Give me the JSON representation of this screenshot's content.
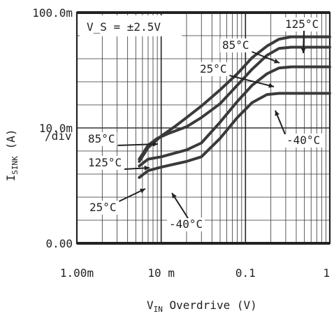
{
  "chart_data": {
    "type": "line",
    "title": "",
    "annotation": "V_S = ±2.5V",
    "x_axis": {
      "label_main": "V",
      "label_sub": "IN",
      "label_rest": " Overdrive (V)",
      "scale": "log",
      "xlim": [
        0.001,
        1
      ],
      "ticks": [
        {
          "value": 0.001,
          "label": "1.00m"
        },
        {
          "value": 0.01,
          "label": "10 m"
        },
        {
          "value": 0.1,
          "label": "0.1"
        },
        {
          "value": 1,
          "label": "1"
        }
      ]
    },
    "y_axis": {
      "label_main": "I",
      "label_sub": "SINK",
      "label_rest": " (A)",
      "scale": "linear",
      "ylim": [
        0,
        0.1
      ],
      "ticks": [
        {
          "value": 0.1,
          "label": "100.0m"
        },
        {
          "value": 0.05,
          "label": "10.0m"
        },
        {
          "value": 0,
          "label": "0.00"
        }
      ],
      "per_div_label": "/div"
    },
    "grid": true,
    "series": [
      {
        "name": "125°C",
        "points": [
          [
            0.0055,
            0.0355
          ],
          [
            0.007,
            0.0415
          ],
          [
            0.01,
            0.0465
          ],
          [
            0.015,
            0.051
          ],
          [
            0.02,
            0.0545
          ],
          [
            0.03,
            0.0595
          ],
          [
            0.05,
            0.0665
          ],
          [
            0.08,
            0.0735
          ],
          [
            0.12,
            0.0805
          ],
          [
            0.18,
            0.0855
          ],
          [
            0.25,
            0.0885
          ],
          [
            0.35,
            0.0895
          ],
          [
            1,
            0.0895
          ]
        ]
      },
      {
        "name": "85°C",
        "points": [
          [
            0.0055,
            0.0365
          ],
          [
            0.007,
            0.0425
          ],
          [
            0.009,
            0.0455
          ],
          [
            0.012,
            0.0475
          ],
          [
            0.02,
            0.0505
          ],
          [
            0.03,
            0.0545
          ],
          [
            0.05,
            0.0605
          ],
          [
            0.08,
            0.0685
          ],
          [
            0.12,
            0.0755
          ],
          [
            0.18,
            0.0815
          ],
          [
            0.25,
            0.0845
          ],
          [
            0.35,
            0.085
          ],
          [
            1,
            0.085
          ]
        ]
      },
      {
        "name": "25°C",
        "points": [
          [
            0.0055,
            0.0335
          ],
          [
            0.007,
            0.0365
          ],
          [
            0.01,
            0.0375
          ],
          [
            0.02,
            0.0405
          ],
          [
            0.03,
            0.0435
          ],
          [
            0.05,
            0.0525
          ],
          [
            0.08,
            0.0615
          ],
          [
            0.12,
            0.0685
          ],
          [
            0.18,
            0.0735
          ],
          [
            0.25,
            0.076
          ],
          [
            0.35,
            0.0765
          ],
          [
            1,
            0.0765
          ]
        ]
      },
      {
        "name": "-40°C",
        "points": [
          [
            0.0055,
            0.0285
          ],
          [
            0.007,
            0.0315
          ],
          [
            0.01,
            0.033
          ],
          [
            0.02,
            0.0355
          ],
          [
            0.03,
            0.0375
          ],
          [
            0.05,
            0.0455
          ],
          [
            0.08,
            0.0545
          ],
          [
            0.12,
            0.061
          ],
          [
            0.18,
            0.0645
          ],
          [
            0.25,
            0.065
          ],
          [
            0.35,
            0.065
          ],
          [
            1,
            0.065
          ]
        ]
      }
    ],
    "curve_labels": [
      {
        "text": "125°C",
        "series": "125°C"
      },
      {
        "text": "85°C",
        "series": "85°C"
      },
      {
        "text": "25°C",
        "series": "25°C"
      },
      {
        "text": "-40°C",
        "series": "-40°C"
      },
      {
        "text": "85°C",
        "series": "85°C"
      },
      {
        "text": "125°C",
        "series": "125°C"
      },
      {
        "text": "25°C",
        "series": "25°C"
      },
      {
        "text": "-40°C",
        "series": "-40°C"
      }
    ]
  }
}
